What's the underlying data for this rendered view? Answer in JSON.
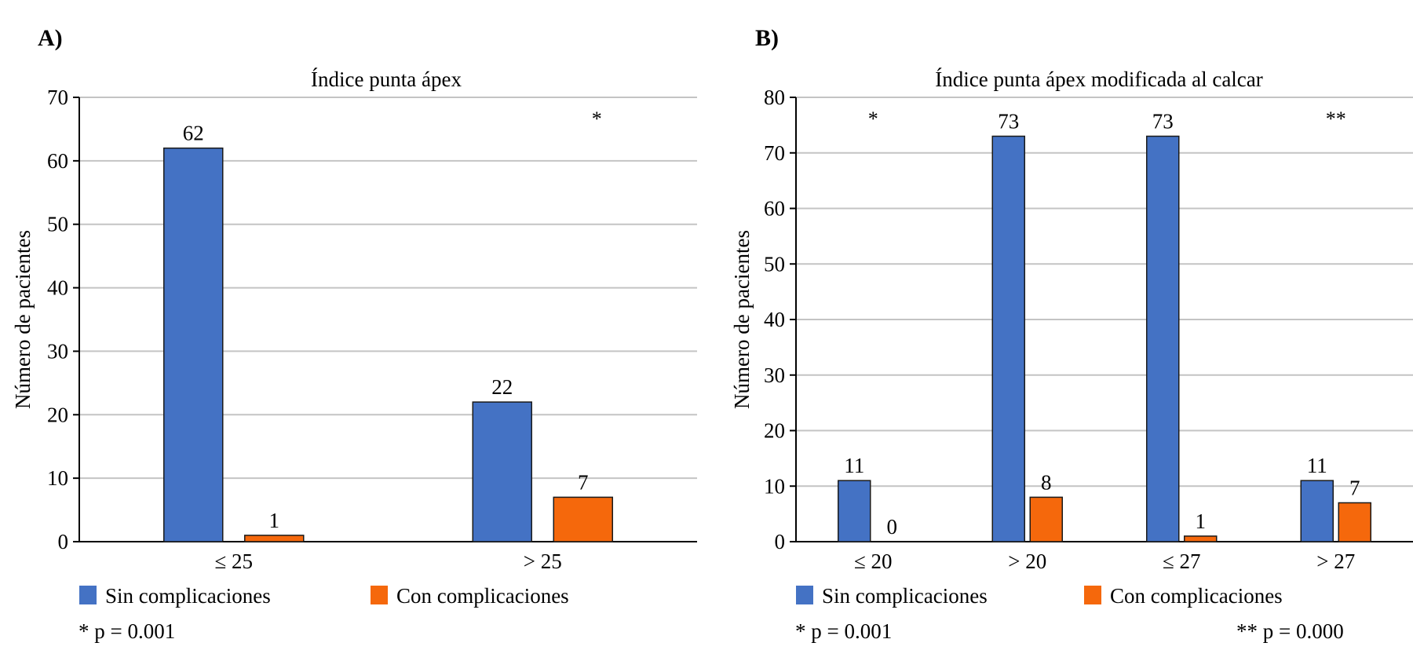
{
  "colors": {
    "series_sin": "#4472C4",
    "series_con": "#F5680C",
    "grid": "#c4c4c4",
    "axis": "#000000"
  },
  "chart_data": [
    {
      "type": "bar",
      "panel_label": "A)",
      "title": "Índice punta ápex",
      "xlabel": "",
      "ylabel": "Número de pacientes",
      "ylim": [
        0,
        70
      ],
      "yticks": [
        0,
        10,
        20,
        30,
        40,
        50,
        60,
        70
      ],
      "grid": true,
      "categories": [
        "≤ 25",
        "> 25"
      ],
      "series": [
        {
          "name": "Sin complicaciones",
          "values": [
            62,
            22
          ]
        },
        {
          "name": "Con complicaciones",
          "values": [
            1,
            7
          ]
        }
      ],
      "annotations": [
        {
          "text": "*",
          "category": "> 25"
        }
      ],
      "legend": {
        "placement": "bottom-left",
        "entries": [
          "Sin complicaciones",
          "Con complicaciones"
        ]
      },
      "notes": [
        "* p = 0.001"
      ]
    },
    {
      "type": "bar",
      "panel_label": "B)",
      "title": "Índice punta ápex modificada al calcar",
      "xlabel": "",
      "ylabel": "Número de pacientes",
      "ylim": [
        0,
        80
      ],
      "yticks": [
        0,
        10,
        20,
        30,
        40,
        50,
        60,
        70,
        80
      ],
      "grid": true,
      "categories": [
        "≤ 20",
        "> 20",
        "≤ 27",
        "> 27"
      ],
      "series": [
        {
          "name": "Sin complicaciones",
          "values": [
            11,
            73,
            73,
            11
          ]
        },
        {
          "name": "Con complicaciones",
          "values": [
            0,
            8,
            1,
            7
          ]
        }
      ],
      "annotations": [
        {
          "text": "*",
          "category": "≤ 20"
        },
        {
          "text": "**",
          "category": "> 27"
        }
      ],
      "legend": {
        "placement": "bottom-left",
        "entries": [
          "Sin complicaciones",
          "Con complicaciones"
        ]
      },
      "notes": [
        "* p = 0.001",
        "** p = 0.000"
      ]
    }
  ]
}
